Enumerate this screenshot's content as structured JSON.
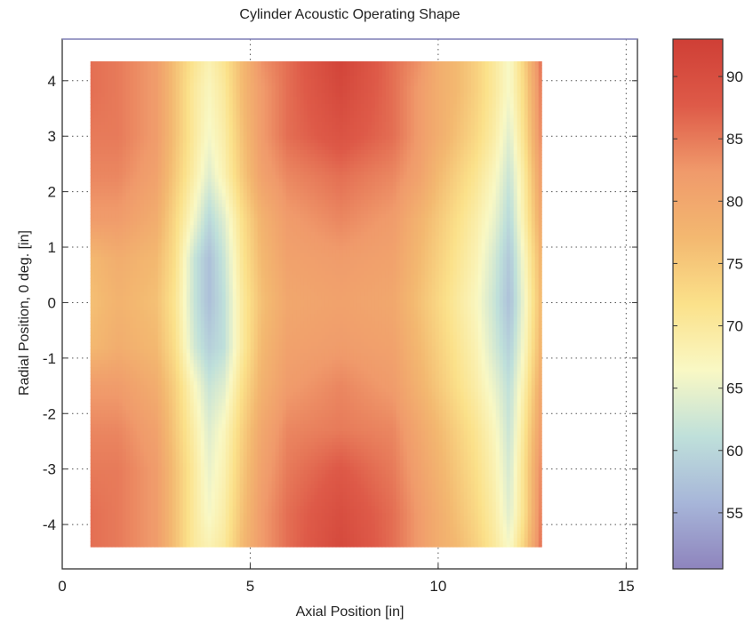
{
  "chart_data": {
    "type": "heatmap",
    "title": "Cylinder Acoustic Operating Shape",
    "xlabel": "Axial Position [in]",
    "ylabel": "Radial Position, 0 deg. [in]",
    "xlim": [
      0,
      15.3
    ],
    "ylim": [
      -4.8,
      4.75
    ],
    "x_ticks": [
      0,
      5,
      10,
      15
    ],
    "y_ticks": [
      -4,
      -3,
      -2,
      -1,
      0,
      1,
      2,
      3,
      4
    ],
    "data_extent": {
      "x": [
        0.75,
        12.75
      ],
      "y": [
        -4.4,
        4.35
      ]
    },
    "grid": "dotted",
    "colorbar": {
      "range": [
        50.5,
        93
      ],
      "ticks": [
        55,
        60,
        65,
        70,
        75,
        80,
        85,
        90
      ],
      "colormap": [
        "#8e84bd",
        "#a7b6d9",
        "#bfe0da",
        "#f9f8c4",
        "#fbe18a",
        "#f3b870",
        "#f09a6b",
        "#de5a48",
        "#cf3f36"
      ]
    },
    "field": {
      "x": [
        0.75,
        1.5,
        2.5,
        3.0,
        3.5,
        3.9,
        4.3,
        4.8,
        5.3,
        6.0,
        7.4,
        8.8,
        9.5,
        10.0,
        10.5,
        11.0,
        11.5,
        11.9,
        12.3,
        12.75
      ],
      "y": [
        -4.4,
        -3.8,
        -3.0,
        -2.3,
        -1.5,
        -0.8,
        0.0,
        0.8,
        1.5,
        2.3,
        3.0,
        3.8,
        4.35
      ],
      "z": [
        [
          86,
          85,
          82,
          76,
          70,
          68,
          70,
          77,
          82,
          86,
          91,
          86,
          82,
          79,
          77,
          74,
          70,
          66,
          74,
          86
        ],
        [
          86,
          85,
          82,
          76,
          70,
          66,
          69,
          76,
          82,
          86,
          90,
          86,
          82,
          79,
          76,
          73,
          69,
          64,
          72,
          85
        ],
        [
          85,
          85,
          82,
          76,
          70,
          65,
          68,
          75,
          81,
          85,
          88,
          85,
          81,
          78,
          75,
          72,
          68,
          63,
          72,
          84
        ],
        [
          84,
          84,
          81,
          75,
          69,
          64,
          67,
          74,
          80,
          84,
          85,
          84,
          80,
          77,
          74,
          71,
          67,
          62,
          71,
          82
        ],
        [
          82,
          82,
          79,
          74,
          67,
          62,
          64,
          72,
          78,
          82,
          84,
          82,
          78,
          75,
          72,
          69,
          65,
          61,
          69,
          80
        ],
        [
          77,
          79,
          77,
          72,
          63,
          59,
          61,
          70,
          77,
          81,
          82,
          81,
          77,
          74,
          71,
          68,
          63,
          59,
          67,
          78
        ],
        [
          76,
          78,
          76,
          71,
          62,
          57,
          61,
          70,
          76,
          80,
          81,
          80,
          76,
          73,
          70,
          67,
          62,
          57,
          66,
          77
        ],
        [
          77,
          79,
          77,
          72,
          62,
          57,
          62,
          71,
          77,
          81,
          82,
          81,
          77,
          74,
          71,
          68,
          63,
          58,
          67,
          78
        ],
        [
          82,
          82,
          79,
          73,
          66,
          60,
          64,
          72,
          78,
          82,
          84,
          82,
          78,
          75,
          72,
          69,
          65,
          60,
          69,
          80
        ],
        [
          84,
          84,
          81,
          75,
          69,
          64,
          68,
          75,
          81,
          84,
          86,
          84,
          81,
          77,
          74,
          71,
          67,
          62,
          70,
          82
        ],
        [
          85,
          85,
          82,
          76,
          70,
          66,
          69,
          76,
          82,
          86,
          89,
          86,
          82,
          79,
          76,
          73,
          69,
          64,
          72,
          84
        ],
        [
          86,
          85,
          82,
          76,
          70,
          67,
          70,
          77,
          82,
          86,
          91,
          86,
          82,
          79,
          77,
          74,
          70,
          66,
          73,
          85
        ],
        [
          86,
          85,
          82,
          76,
          71,
          68,
          71,
          77,
          83,
          86,
          92,
          86,
          83,
          79,
          77,
          74,
          70,
          66,
          74,
          86
        ]
      ]
    }
  }
}
